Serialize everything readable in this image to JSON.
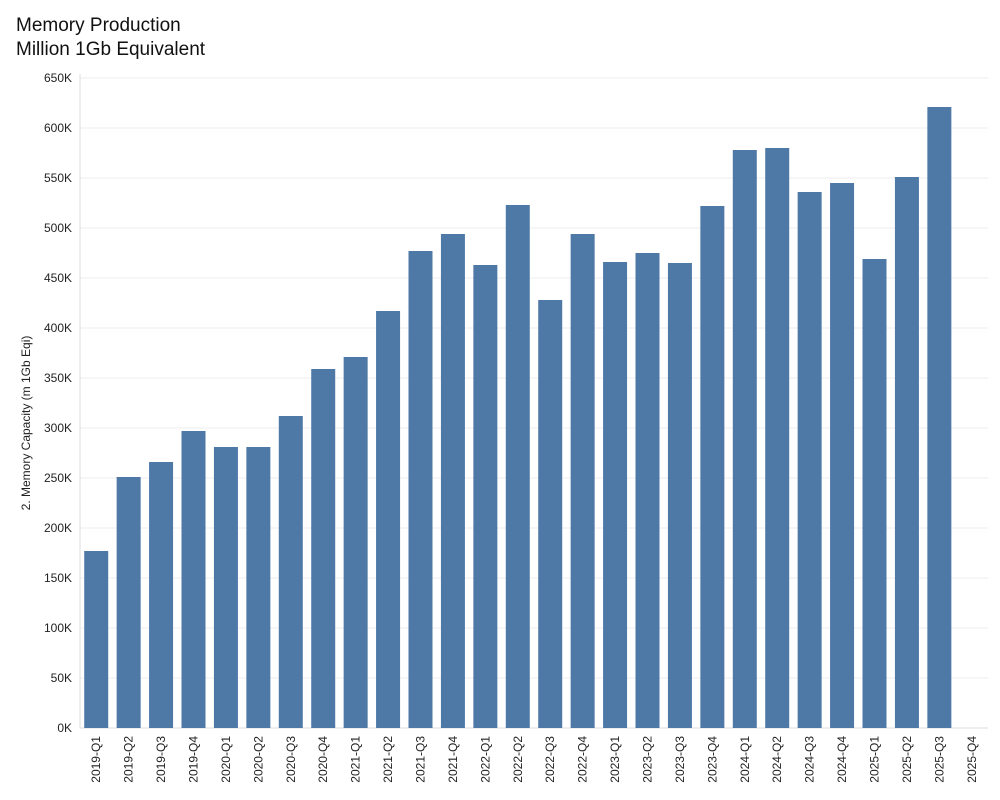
{
  "chart_data": {
    "type": "bar",
    "title": "Memory Production",
    "subtitle": "Million 1Gb Equivalent",
    "xlabel": "",
    "ylabel": "2. Memory Capacity (m 1Gb Eqi)",
    "ylim": [
      0,
      650000
    ],
    "yticks": [
      0,
      50000,
      100000,
      150000,
      200000,
      250000,
      300000,
      350000,
      400000,
      450000,
      500000,
      550000,
      600000,
      650000
    ],
    "ytick_labels": [
      "0K",
      "50K",
      "100K",
      "150K",
      "200K",
      "250K",
      "300K",
      "350K",
      "400K",
      "450K",
      "500K",
      "550K",
      "600K",
      "650K"
    ],
    "grid": true,
    "bar_color": "#4e79a7",
    "categories": [
      "2019-Q1",
      "2019-Q2",
      "2019-Q3",
      "2019-Q4",
      "2020-Q1",
      "2020-Q2",
      "2020-Q3",
      "2020-Q4",
      "2021-Q1",
      "2021-Q2",
      "2021-Q3",
      "2021-Q4",
      "2022-Q1",
      "2022-Q2",
      "2022-Q3",
      "2022-Q4",
      "2023-Q1",
      "2023-Q2",
      "2023-Q3",
      "2023-Q4",
      "2024-Q1",
      "2024-Q2",
      "2024-Q3",
      "2024-Q4",
      "2025-Q1",
      "2025-Q2",
      "2025-Q3",
      "2025-Q4"
    ],
    "values": [
      177000,
      251000,
      266000,
      297000,
      281000,
      281000,
      312000,
      359000,
      371000,
      417000,
      477000,
      494000,
      463000,
      523000,
      428000,
      494000,
      466000,
      475000,
      465000,
      522000,
      578000,
      580000,
      536000,
      545000,
      469000,
      551000,
      621000,
      null
    ]
  }
}
